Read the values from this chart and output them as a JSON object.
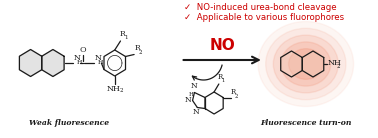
{
  "bg_color": "#ffffff",
  "title_line1": "✓  NO-induced urea-bond cleavage",
  "title_line2": "✓  Applicable to various fluorophores",
  "title_color": "#cc0000",
  "no_label": "NO",
  "no_color": "#cc0000",
  "arrow_color": "#1a1a1a",
  "weak_label": "Weak fluorescence",
  "strong_label": "Fluorescence turn-on",
  "label_color": "#1a1a1a",
  "glow_color": "#f08060",
  "struct_color": "#1a1a1a",
  "fill_gray": "#c8c8c8",
  "fill_pink": "#f0d0c0",
  "figsize": [
    3.78,
    1.38
  ],
  "dpi": 100
}
